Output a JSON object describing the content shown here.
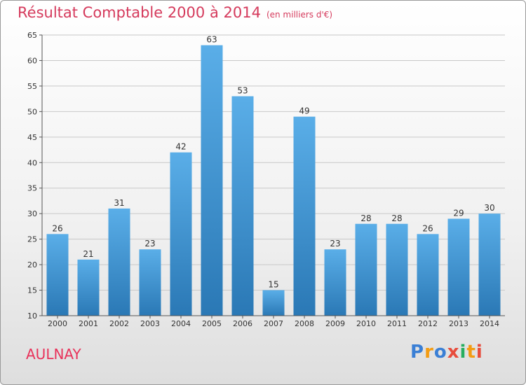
{
  "header": {
    "title": "Résultat Comptable 2000 à 2014",
    "subtitle": "(en milliers d'€)"
  },
  "footer": {
    "commune": "AULNAY",
    "logo_letters": [
      "P",
      "r",
      "o",
      "x",
      "i",
      "t",
      "i"
    ],
    "logo_colors": [
      "#3a7fd5",
      "#f39c12",
      "#3a7fd5",
      "#e74c3c",
      "#27ae60",
      "#f39c12",
      "#e74c3c"
    ]
  },
  "chart_data": {
    "type": "bar",
    "title": "Résultat Comptable 2000 à 2014",
    "subtitle": "(en milliers d'€)",
    "categories": [
      "2000",
      "2001",
      "2002",
      "2003",
      "2004",
      "2005",
      "2006",
      "2007",
      "2008",
      "2009",
      "2010",
      "2011",
      "2012",
      "2013",
      "2014"
    ],
    "values": [
      26,
      21,
      31,
      23,
      42,
      63,
      53,
      15,
      49,
      23,
      28,
      28,
      26,
      29,
      30
    ],
    "value_labels": [
      "26",
      "21",
      "31",
      "23",
      "42",
      "63",
      "53",
      "15",
      "49",
      "23",
      "28",
      "28",
      "26",
      "29",
      "30"
    ],
    "y_ticks": [
      10,
      15,
      20,
      25,
      30,
      35,
      40,
      45,
      50,
      55,
      60,
      65
    ],
    "y_tick_labels": [
      "10",
      "15",
      "20",
      "25",
      "30",
      "35",
      "40",
      "45",
      "50",
      "55",
      "60",
      "65"
    ],
    "ylim": [
      10,
      65
    ],
    "grid": true,
    "bar_color_top": "#5aaee8",
    "bar_color_bottom": "#2a78b5"
  }
}
